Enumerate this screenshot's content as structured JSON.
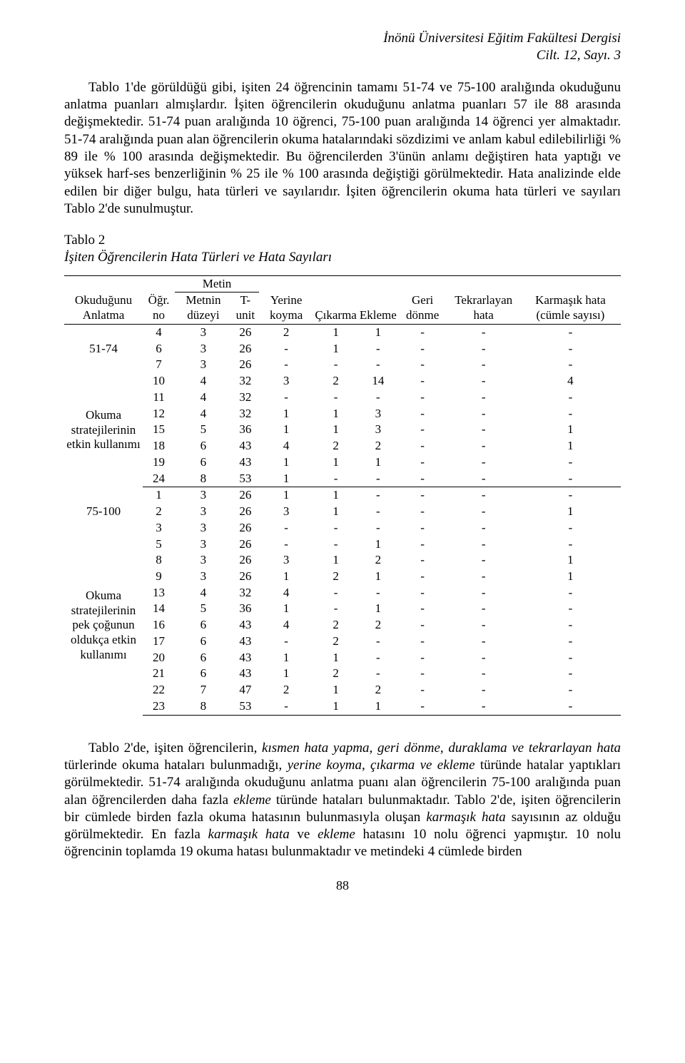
{
  "journal": {
    "name": "İnönü Üniversitesi Eğitim Fakültesi Dergisi",
    "issue": "Cilt. 12, Sayı. 3"
  },
  "paragraph1": "Tablo 1'de görüldüğü gibi, işiten 24 öğrencinin tamamı 51-74 ve 75-100 aralığında okuduğunu anlatma puanları almışlardır. İşiten öğrencilerin okuduğunu anlatma puanları 57 ile 88 arasında değişmektedir. 51-74 puan aralığında 10 öğrenci, 75-100 puan aralığında 14 öğrenci yer almaktadır. 51-74 aralığında puan alan öğrencilerin okuma hatalarındaki sözdizimi ve anlam kabul edilebilirliği % 89 ile % 100 arasında değişmektedir. Bu öğrencilerden 3'ünün anlamı değiştiren hata yaptığı ve yüksek harf-ses benzerliğinin % 25 ile % 100 arasında değiştiği görülmektedir. Hata analizinde elde edilen bir diğer bulgu, hata türleri ve sayılarıdır. İşiten öğrencilerin okuma hata türleri ve sayıları Tablo 2'de sunulmuştur.",
  "table_caption": {
    "label": "Tablo 2",
    "title": "İşiten Öğrencilerin Hata Türleri ve Hata Sayıları"
  },
  "headers": {
    "col0": "Okuduğunu Anlatma",
    "col1": "Öğr. no",
    "col2_top": "Metin",
    "col2a": "Metnin düzeyi",
    "col2b": "T-unit",
    "col3": "Yerine koyma",
    "col4": "Çıkarma",
    "col5": "Ekleme",
    "col6": "Geri dönme",
    "col7": "Tekrarlayan hata",
    "col8": "Karmaşık hata (cümle sayısı)"
  },
  "group1": {
    "label_top": "51-74",
    "label_mid": "Okuma stratejilerinin etkin kullanımı",
    "rows": [
      [
        "4",
        "3",
        "26",
        "2",
        "1",
        "1",
        "-",
        "-",
        "-"
      ],
      [
        "6",
        "3",
        "26",
        "-",
        "1",
        "-",
        "-",
        "-",
        "-"
      ],
      [
        "7",
        "3",
        "26",
        "-",
        "-",
        "-",
        "-",
        "-",
        "-"
      ],
      [
        "10",
        "4",
        "32",
        "3",
        "2",
        "14",
        "-",
        "-",
        "4"
      ],
      [
        "11",
        "4",
        "32",
        "-",
        "-",
        "-",
        "-",
        "-",
        "-"
      ],
      [
        "12",
        "4",
        "32",
        "1",
        "1",
        "3",
        "-",
        "-",
        "-"
      ],
      [
        "15",
        "5",
        "36",
        "1",
        "1",
        "3",
        "-",
        "-",
        "1"
      ],
      [
        "18",
        "6",
        "43",
        "4",
        "2",
        "2",
        "-",
        "-",
        "1"
      ],
      [
        "19",
        "6",
        "43",
        "1",
        "1",
        "1",
        "-",
        "-",
        "-"
      ],
      [
        "24",
        "8",
        "53",
        "1",
        "-",
        "-",
        "-",
        "-",
        "-"
      ]
    ]
  },
  "group2": {
    "label_top": "75-100",
    "label_mid": "Okuma stratejilerinin pek çoğunun oldukça etkin kullanımı",
    "rows": [
      [
        "1",
        "3",
        "26",
        "1",
        "1",
        "-",
        "-",
        "-",
        "-"
      ],
      [
        "2",
        "3",
        "26",
        "3",
        "1",
        "-",
        "-",
        "-",
        "1"
      ],
      [
        "3",
        "3",
        "26",
        "-",
        "-",
        "-",
        "-",
        "-",
        "-"
      ],
      [
        "5",
        "3",
        "26",
        "-",
        "-",
        "1",
        "-",
        "-",
        "-"
      ],
      [
        "8",
        "3",
        "26",
        "3",
        "1",
        "2",
        "-",
        "-",
        "1"
      ],
      [
        "9",
        "3",
        "26",
        "1",
        "2",
        "1",
        "-",
        "-",
        "1"
      ],
      [
        "13",
        "4",
        "32",
        "4",
        "-",
        "-",
        "-",
        "-",
        "-"
      ],
      [
        "14",
        "5",
        "36",
        "1",
        "-",
        "1",
        "-",
        "-",
        "-"
      ],
      [
        "16",
        "6",
        "43",
        "4",
        "2",
        "2",
        "-",
        "-",
        "-"
      ],
      [
        "17",
        "6",
        "43",
        "-",
        "2",
        "-",
        "-",
        "-",
        "-"
      ],
      [
        "20",
        "6",
        "43",
        "1",
        "1",
        "-",
        "-",
        "-",
        "-"
      ],
      [
        "21",
        "6",
        "43",
        "1",
        "2",
        "-",
        "-",
        "-",
        "-"
      ],
      [
        "22",
        "7",
        "47",
        "2",
        "1",
        "2",
        "-",
        "-",
        "-"
      ],
      [
        "23",
        "8",
        "53",
        "-",
        "1",
        "1",
        "-",
        "-",
        "-"
      ]
    ]
  },
  "paragraph2_parts": {
    "a": "Tablo 2'de, işiten öğrencilerin, ",
    "b": "kısmen hata yapma, geri dönme, duraklama ve tekrarlayan hata",
    "c": " türlerinde okuma hataları bulunmadığı, ",
    "d": "yerine koyma, çıkarma ve ekleme",
    "e": " türünde hatalar yaptıkları görülmektedir. 51-74 aralığında okuduğunu anlatma puanı alan öğrencilerin 75-100 aralığında puan alan öğrencilerden daha fazla ",
    "f": "ekleme",
    "g": " türünde hataları bulunmaktadır. Tablo 2'de,  işiten öğrencilerin bir cümlede birden fazla okuma hatasının bulunmasıyla oluşan ",
    "h": "karmaşık hata",
    "i": " sayısının az olduğu görülmektedir. En fazla ",
    "j": "karmaşık hata",
    "k": " ve ",
    "l": "ekleme",
    "m": " hatasını 10 nolu öğrenci yapmıştır. 10 nolu öğrencinin toplamda 19 okuma hatası bulunmaktadır ve metindeki 4 cümlede birden"
  },
  "page_number": "88"
}
